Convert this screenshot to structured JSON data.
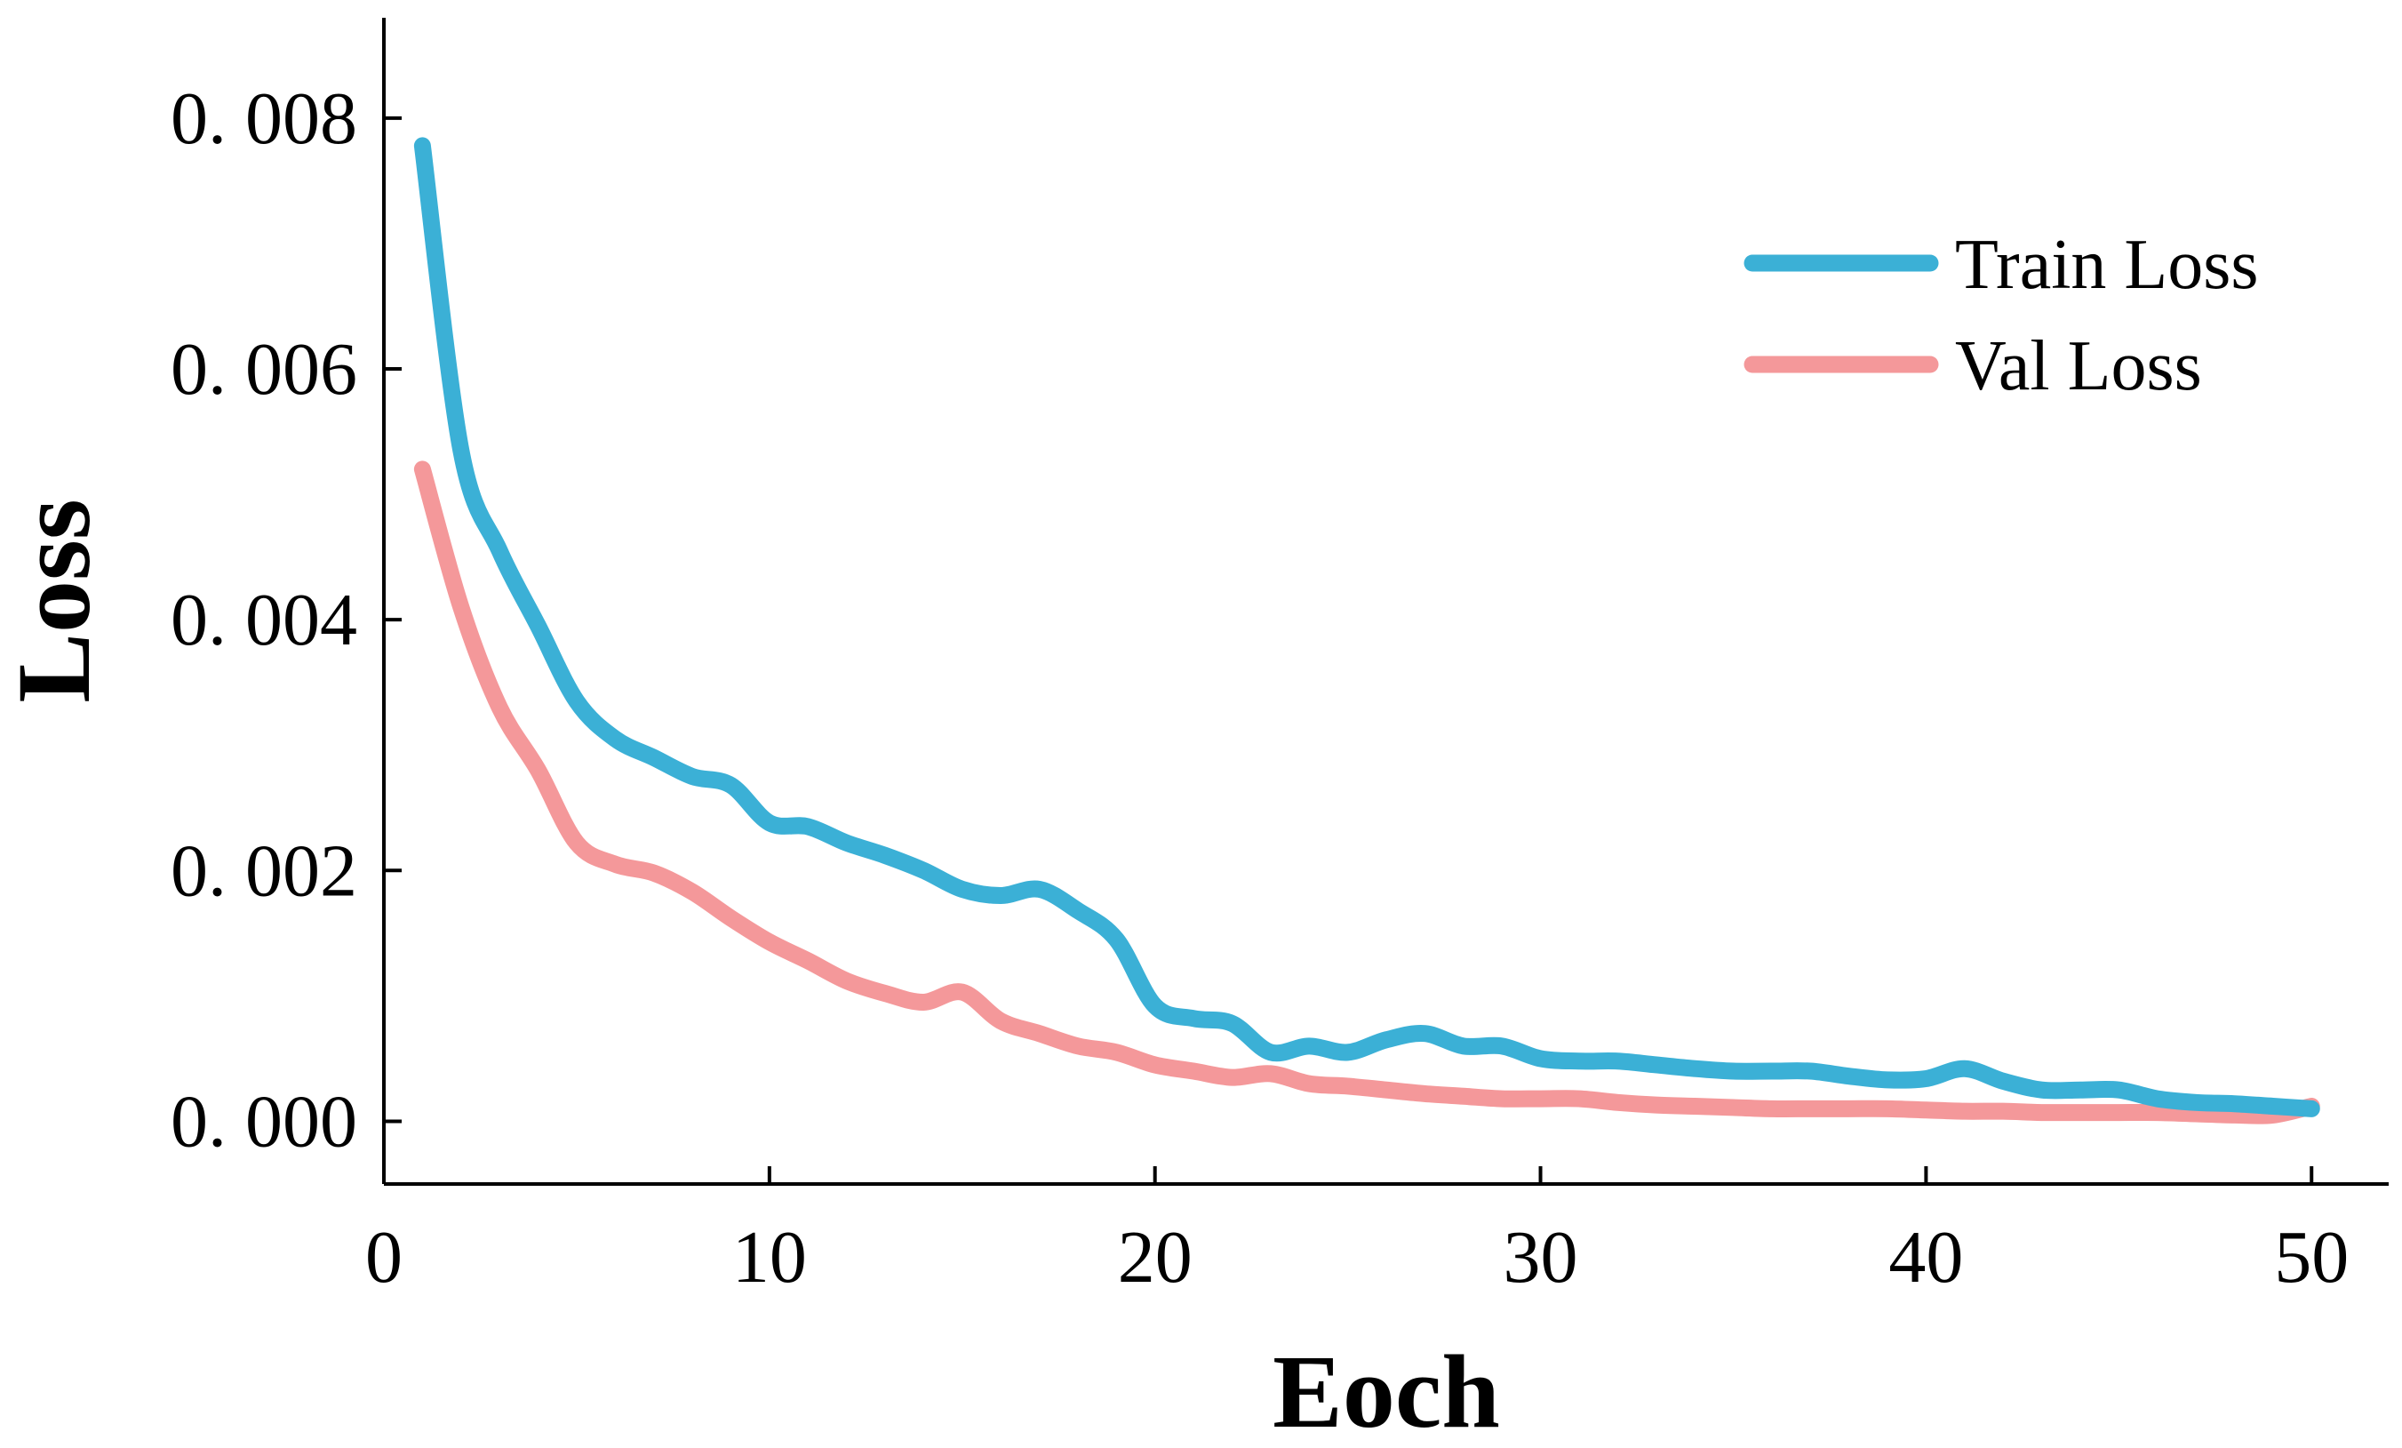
{
  "chart_data": {
    "type": "line",
    "title": "",
    "xlabel": "Eoch",
    "ylabel": "Loss",
    "xlim": [
      0,
      52
    ],
    "ylim": [
      -0.0005,
      0.0088
    ],
    "xticks": [
      0,
      10,
      20,
      30,
      40,
      50
    ],
    "xtick_labels": [
      "0",
      "10",
      "20",
      "30",
      "40",
      "50"
    ],
    "yticks": [
      0.0,
      0.002,
      0.004,
      0.006,
      0.008
    ],
    "ytick_labels": [
      "0. 000",
      "0. 002",
      "0. 004",
      "0. 006",
      "0. 008"
    ],
    "grid": false,
    "legend_position": "top-right",
    "x": [
      1,
      2,
      3,
      4,
      5,
      6,
      7,
      8,
      9,
      10,
      11,
      12,
      13,
      14,
      15,
      16,
      17,
      18,
      19,
      20,
      21,
      22,
      23,
      24,
      25,
      26,
      27,
      28,
      29,
      30,
      31,
      32,
      33,
      34,
      35,
      36,
      37,
      38,
      39,
      40,
      41,
      42,
      43,
      44,
      45,
      46,
      47,
      48,
      49,
      50
    ],
    "series": [
      {
        "name": "Train Loss",
        "color": "#3bb0d6",
        "values": [
          0.00778,
          0.00535,
          0.00455,
          0.00395,
          0.00335,
          0.00305,
          0.0029,
          0.00275,
          0.00268,
          0.00238,
          0.00235,
          0.00222,
          0.00212,
          0.002,
          0.00185,
          0.0018,
          0.00185,
          0.00168,
          0.00145,
          0.00092,
          0.00082,
          0.00078,
          0.00055,
          0.0006,
          0.00055,
          0.00065,
          0.0007,
          0.0006,
          0.0006,
          0.0005,
          0.00048,
          0.00048,
          0.00045,
          0.00042,
          0.0004,
          0.0004,
          0.0004,
          0.00036,
          0.00033,
          0.00034,
          0.00042,
          0.00032,
          0.00025,
          0.00025,
          0.00025,
          0.00018,
          0.00015,
          0.00014,
          0.00012,
          0.0001
        ]
      },
      {
        "name": "Val Loss",
        "color": "#f4989a",
        "values": [
          0.0052,
          0.0041,
          0.0033,
          0.0028,
          0.00222,
          0.00205,
          0.00198,
          0.00183,
          0.00162,
          0.00143,
          0.00128,
          0.00112,
          0.00102,
          0.00095,
          0.00103,
          0.0008,
          0.0007,
          0.0006,
          0.00055,
          0.00045,
          0.0004,
          0.00035,
          0.00038,
          0.0003,
          0.00028,
          0.00025,
          0.00022,
          0.0002,
          0.00018,
          0.00018,
          0.00018,
          0.00015,
          0.00013,
          0.00012,
          0.00011,
          0.0001,
          0.0001,
          0.0001,
          0.0001,
          9e-05,
          8e-05,
          8e-05,
          7e-05,
          7e-05,
          7e-05,
          7e-05,
          6e-05,
          5e-05,
          5e-05,
          0.00012
        ]
      }
    ]
  }
}
